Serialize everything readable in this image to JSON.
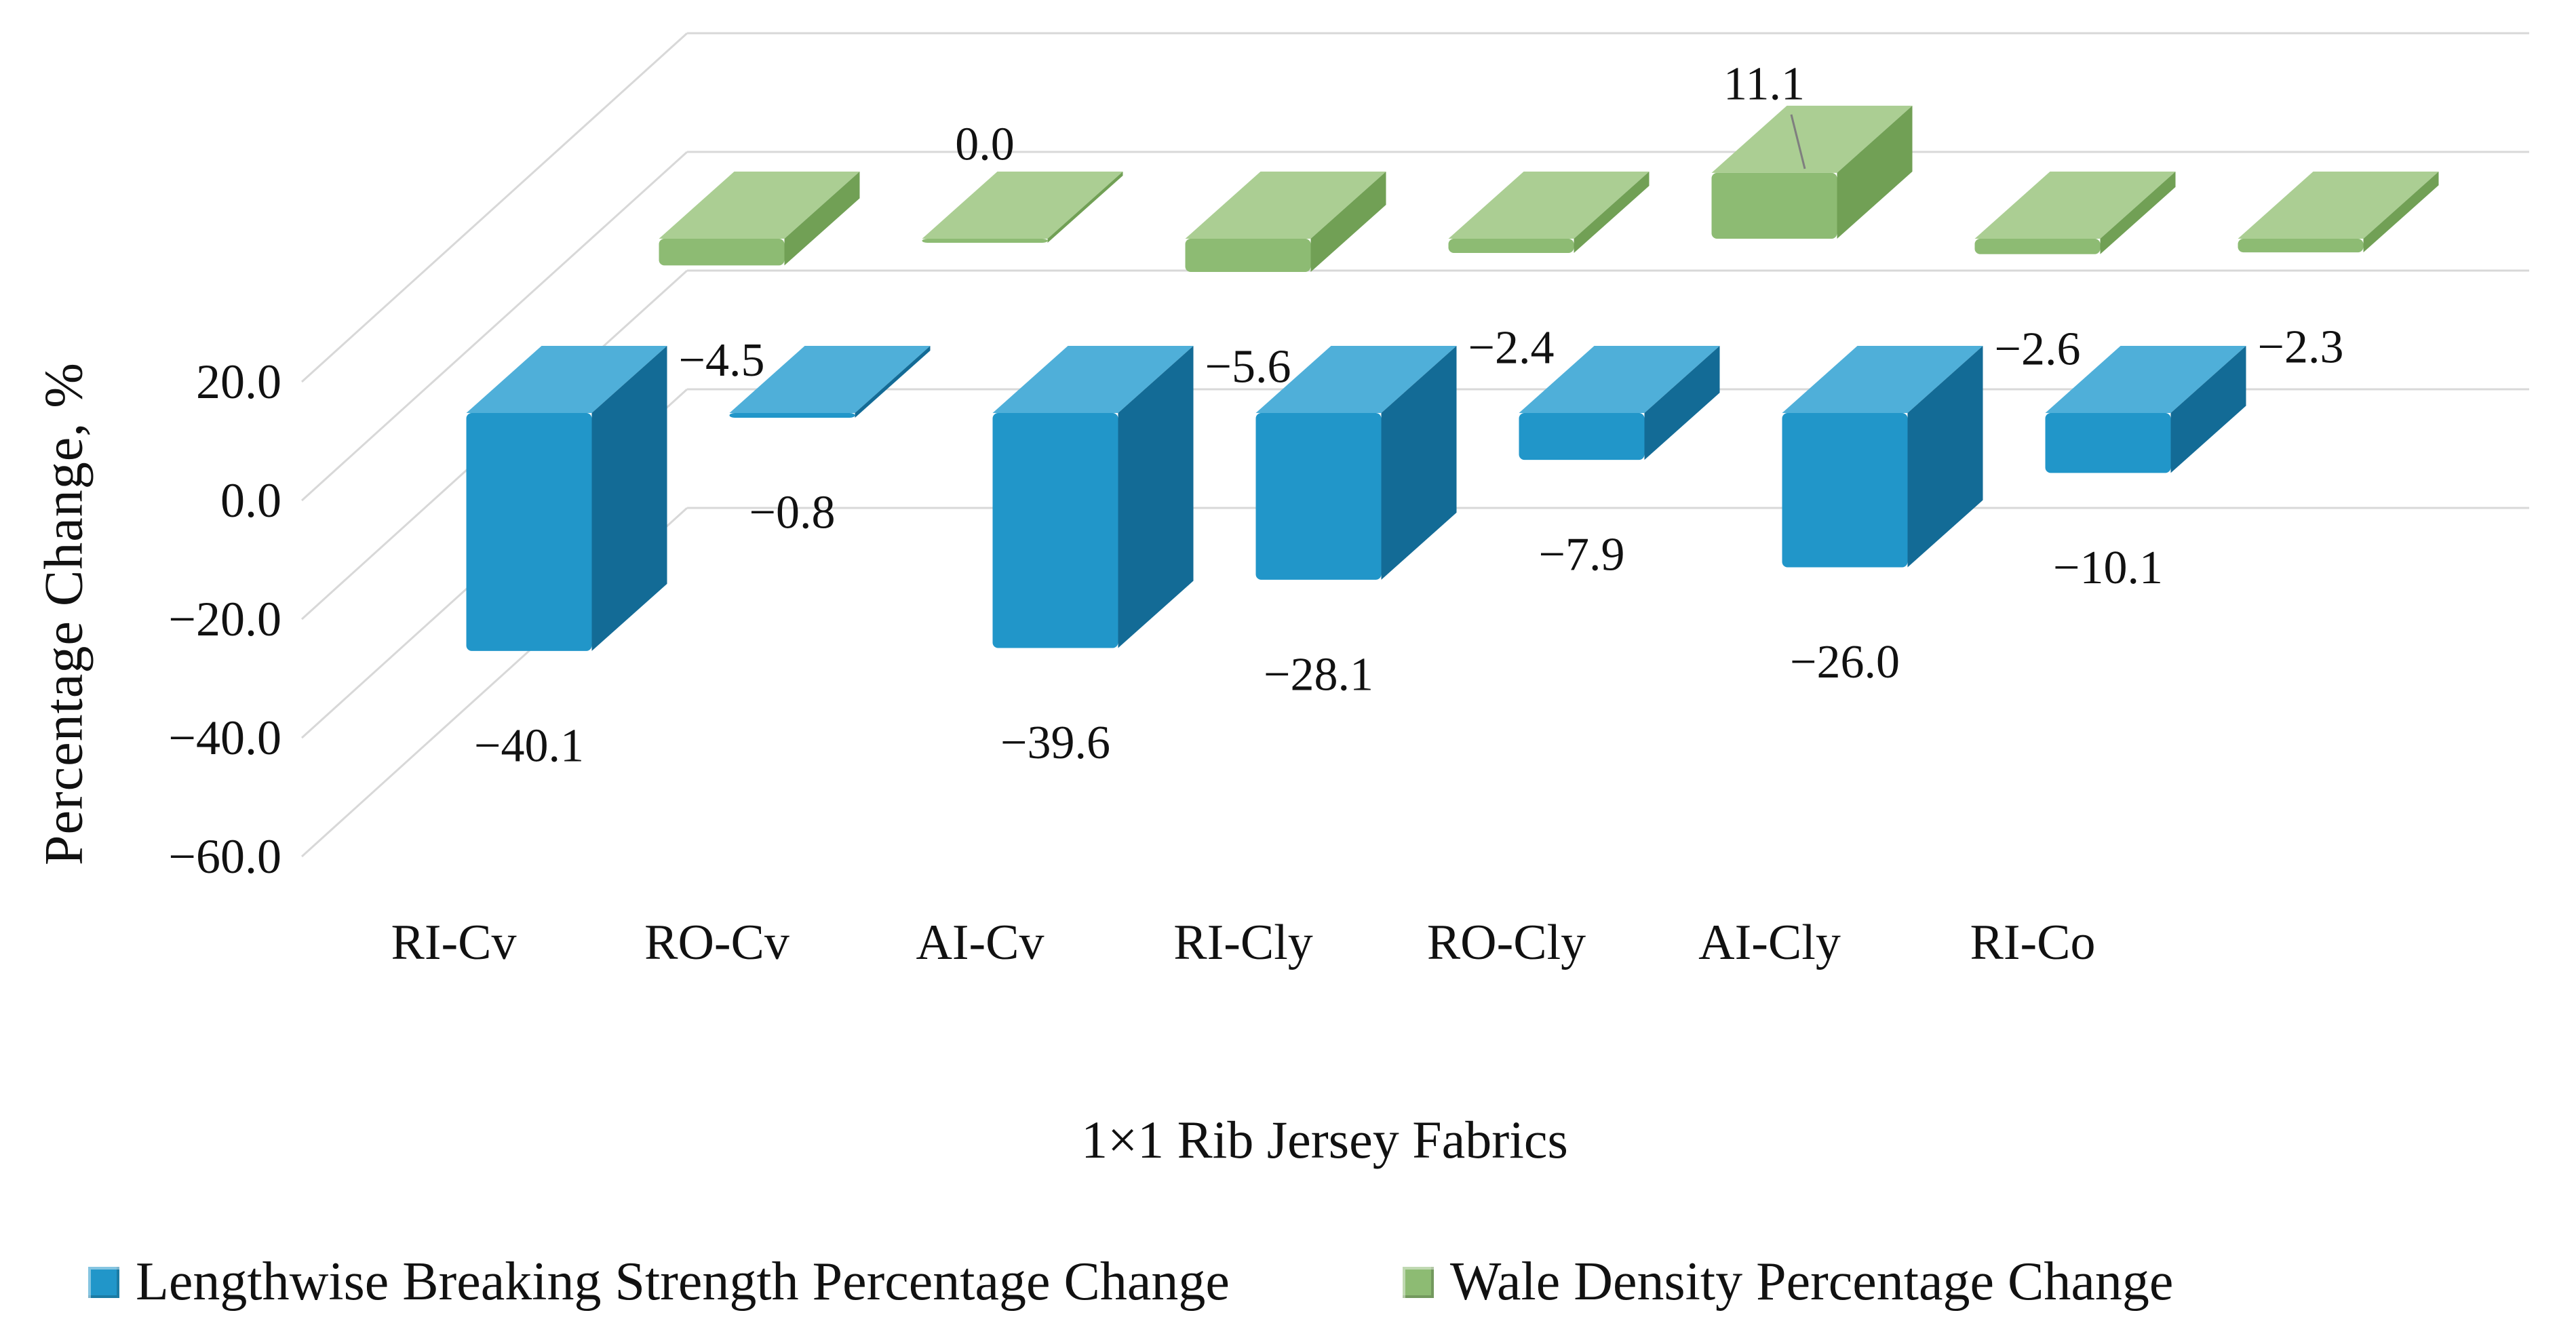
{
  "chart_data": {
    "type": "bar",
    "projection": "3d",
    "title": "",
    "xlabel": "1×1 Rib Jersey Fabrics",
    "ylabel": "Percentage Change, %",
    "categories": [
      "RI-Cv",
      "RO-Cv",
      "AI-Cv",
      "RI-Cly",
      "RO-Cly",
      "AI-Cly",
      "RI-Co"
    ],
    "series": [
      {
        "name": "Lengthwise Breaking Strength Percentage Change",
        "color": "#2196C9",
        "color_top": "#4FAFD9",
        "color_side": "#136B96",
        "values": [
          -40.1,
          -0.8,
          -39.6,
          -28.1,
          -7.9,
          -26.0,
          -10.1
        ],
        "labels": [
          "−40.1",
          "−0.8",
          "−39.6",
          "−28.1",
          "−7.9",
          "−26.0",
          "−10.1"
        ]
      },
      {
        "name": "Wale Density Percentage Change",
        "color": "#8DBB73",
        "color_top": "#ABCE93",
        "color_side": "#71A055",
        "values": [
          -4.5,
          0.0,
          -5.6,
          -2.4,
          11.1,
          -2.6,
          -2.3
        ],
        "labels": [
          "−4.5",
          "0.0",
          "−5.6",
          "−2.4",
          "11.1",
          "−2.6",
          "−2.3"
        ]
      }
    ],
    "yticks": [
      {
        "value": 20,
        "label": "20.0"
      },
      {
        "value": 0,
        "label": "0.0"
      },
      {
        "value": -20,
        "label": "−20.0"
      },
      {
        "value": -40,
        "label": "−40.0"
      },
      {
        "value": -60,
        "label": "−60.0"
      }
    ],
    "ylim": [
      -60,
      20
    ],
    "grid": true,
    "gridline_color": "#D8D8D8",
    "legend_position": "bottom"
  }
}
